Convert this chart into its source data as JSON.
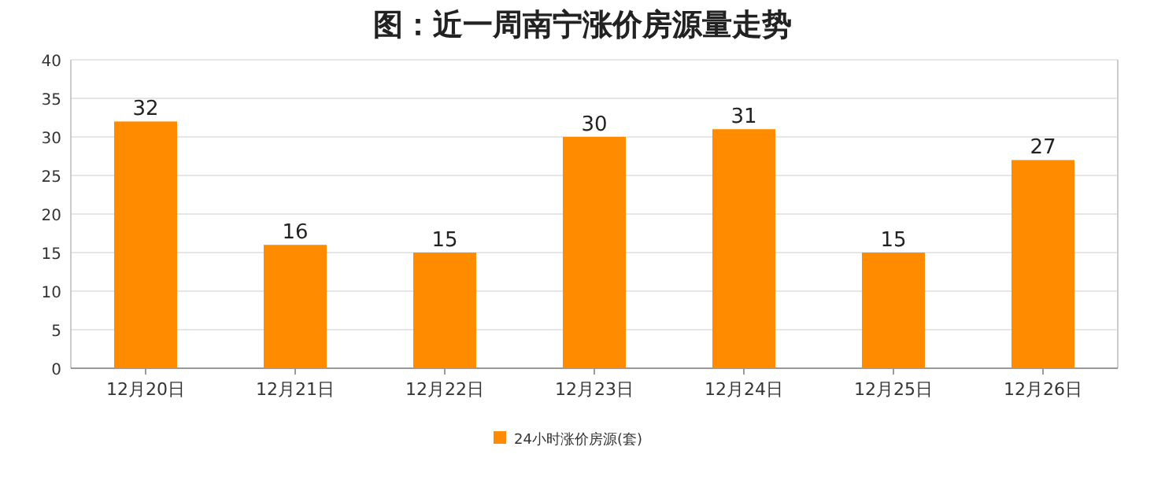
{
  "chart_data": {
    "type": "bar",
    "title": "图：近一周南宁涨价房源量走势",
    "categories": [
      "12月20日",
      "12月21日",
      "12月22日",
      "12月23日",
      "12月24日",
      "12月25日",
      "12月26日"
    ],
    "series": [
      {
        "name": "24小时涨价房源(套)",
        "color": "#ff8c00",
        "values": [
          32,
          16,
          15,
          30,
          31,
          15,
          27
        ]
      }
    ],
    "ylim": [
      0,
      40
    ],
    "yticks": [
      0,
      5,
      10,
      15,
      20,
      25,
      30,
      35,
      40
    ],
    "grid": "y",
    "legend": "bottom",
    "data_labels": true
  }
}
